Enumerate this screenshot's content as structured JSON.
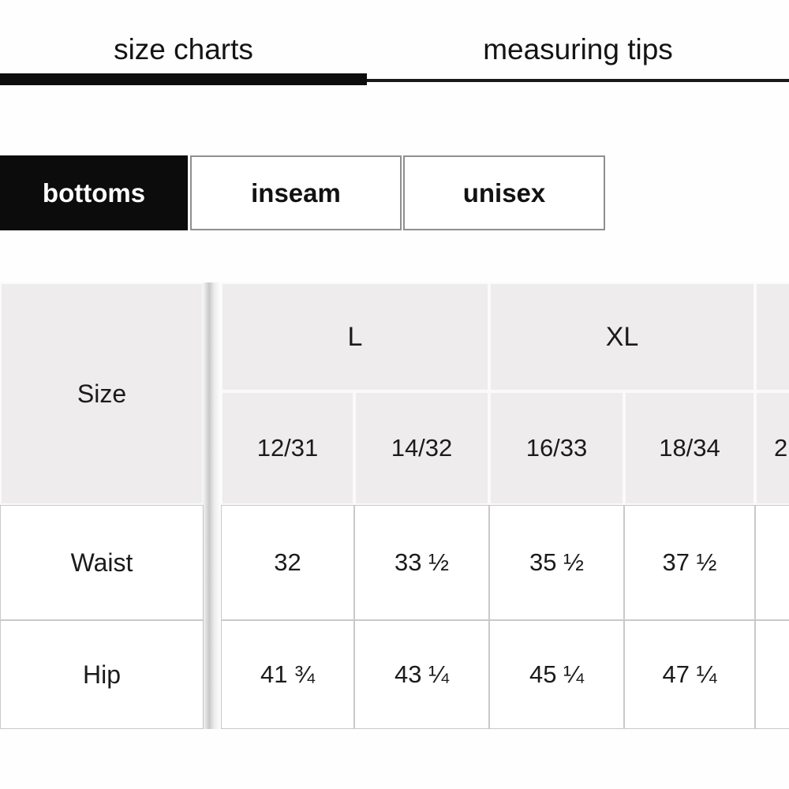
{
  "tabs": {
    "items": [
      {
        "label": "size charts",
        "active": true
      },
      {
        "label": "measuring tips",
        "active": false
      }
    ]
  },
  "category_buttons": {
    "items": [
      {
        "label": "bottoms",
        "active": true
      },
      {
        "label": "inseam",
        "active": false
      },
      {
        "label": "unisex",
        "active": false
      }
    ]
  },
  "size_chart": {
    "corner_label": "Size",
    "groups": [
      {
        "label": "L"
      },
      {
        "label": "XL"
      },
      {
        "label": ""
      }
    ],
    "sub_sizes": [
      "12/31",
      "14/32",
      "16/33",
      "18/34",
      "2"
    ],
    "rows": [
      {
        "label": "Waist",
        "values": [
          "32",
          "33 ½",
          "35 ½",
          "37 ½",
          ""
        ]
      },
      {
        "label": "Hip",
        "values": [
          "41 ¾",
          "43 ¼",
          "45 ¼",
          "47 ¼",
          ""
        ]
      }
    ],
    "last_column_cut_off": true
  },
  "colors": {
    "accent_black": "#0c0c0c",
    "header_cell_bg": "#eeecec",
    "body_cell_border": "#c9c9c9",
    "button_border": "#8f8f8f"
  }
}
